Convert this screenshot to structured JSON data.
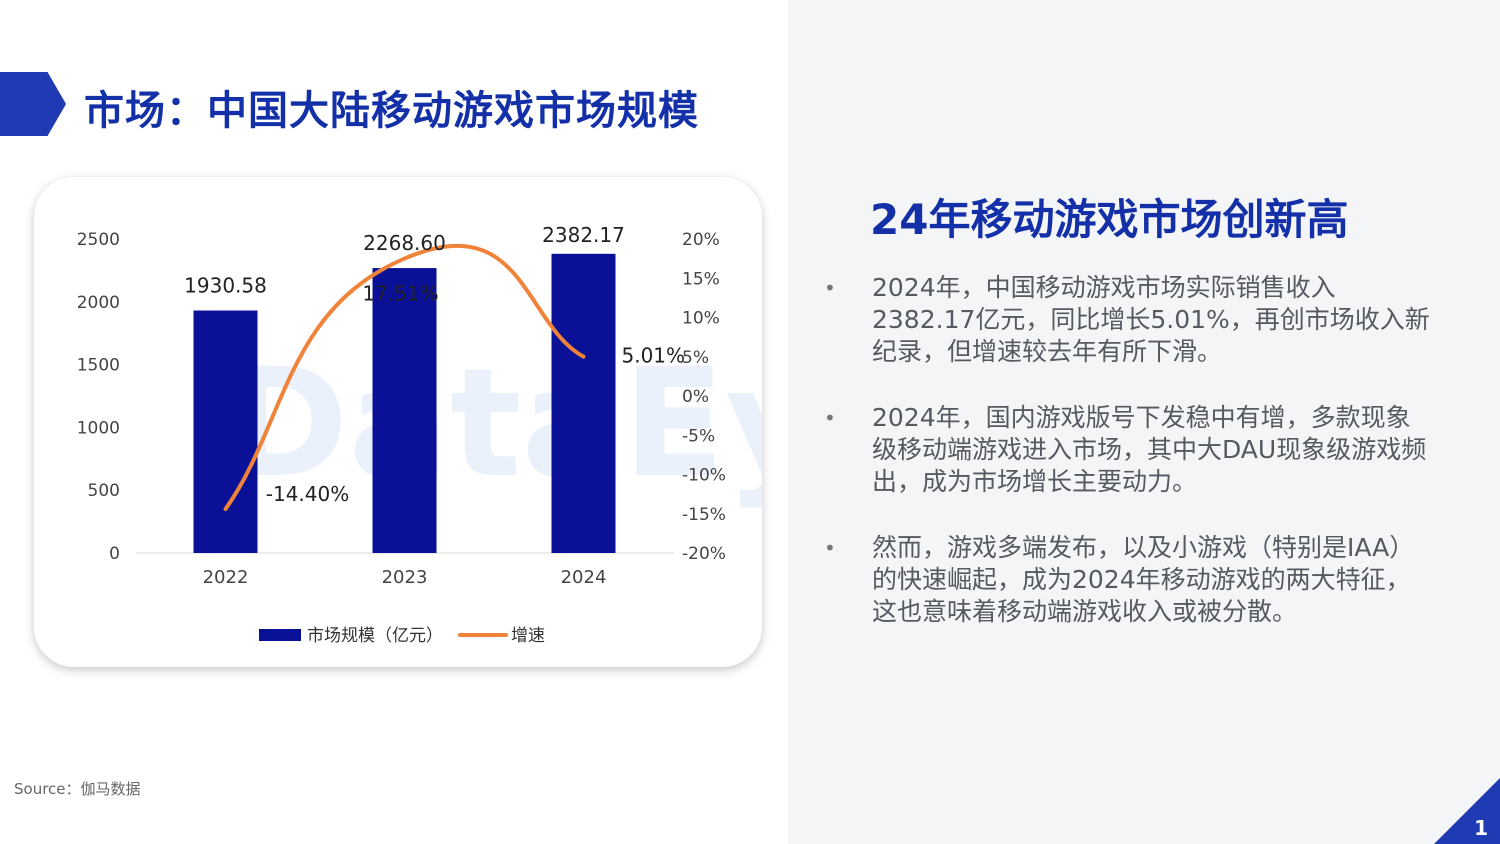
{
  "page": {
    "title": "市场：中国大陆移动游戏市场规模",
    "source": "Source：伽马数据",
    "page_number": "1",
    "brand_color": "#1f3bb3"
  },
  "chart_data": {
    "type": "bar",
    "categories": [
      "2022",
      "2023",
      "2024"
    ],
    "series": [
      {
        "name": "市场规模（亿元）",
        "type": "bar",
        "values": [
          1930.58,
          2268.6,
          2382.17
        ],
        "labels": [
          "1930.58",
          "2268.60",
          "2382.17"
        ],
        "color": "#0a1196"
      },
      {
        "name": "增速",
        "type": "line",
        "axis": "right",
        "values": [
          -14.4,
          17.51,
          5.01
        ],
        "labels": [
          "-14.40%",
          "17.51%",
          "5.01%"
        ],
        "color": "#f0833a"
      }
    ],
    "y_left": {
      "min": 0,
      "max": 2500,
      "ticks": [
        "0",
        "500",
        "1000",
        "1500",
        "2000",
        "2500"
      ]
    },
    "y_right": {
      "min": -20,
      "max": 20,
      "ticks": [
        "-20%",
        "-15%",
        "-10%",
        "-5%",
        "0%",
        "5%",
        "10%",
        "15%",
        "20%"
      ]
    },
    "legend": "bottom",
    "watermark": "DataEye"
  },
  "summary": {
    "title": "24年移动游戏市场创新高",
    "bullet_symbol": "•",
    "bullets": [
      "2024年，中国移动游戏市场实际销售收入2382.17亿元，同比增长5.01%，再创市场收入新纪录，但增速较去年有所下滑。",
      "2024年，国内游戏版号下发稳中有增，多款现象级移动端游戏进入市场，其中大DAU现象级游戏频出，成为市场增长主要动力。",
      "然而，游戏多端发布，以及小游戏（特别是IAA）的快速崛起，成为2024年移动游戏的两大特征，这也意味着移动端游戏收入或被分散。"
    ]
  }
}
